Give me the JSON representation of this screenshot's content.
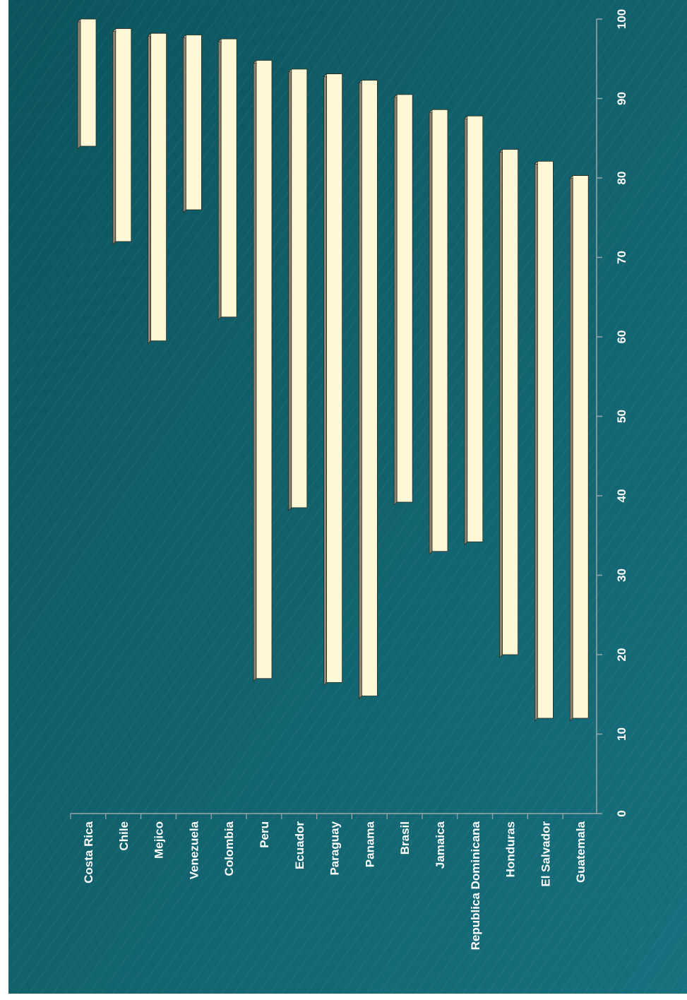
{
  "chart_data": {
    "type": "bar",
    "orientation": "floating-range",
    "categories": [
      "Costa Rica",
      "Chile",
      "Mejico",
      "Venezuela",
      "Colombia",
      "Peru",
      "Ecuador",
      "Paraguay",
      "Panama",
      "Brasil",
      "Jamaica",
      "Republica Dominicana",
      "Honduras",
      "El Salvador",
      "Guatemala"
    ],
    "series": [
      {
        "low": [
          84,
          72,
          59.5,
          76,
          62.5,
          17,
          38.5,
          16.5,
          14.8,
          39.2,
          33,
          34.2,
          20,
          12,
          12
        ],
        "high": [
          100,
          98.8,
          98.2,
          98,
          97.5,
          94.8,
          93.7,
          93.1,
          92.3,
          90.5,
          88.6,
          87.8,
          83.6,
          82.1,
          80.3
        ]
      }
    ],
    "value_axis": {
      "ticks": [
        "0",
        "10",
        "20",
        "30",
        "40",
        "50",
        "60",
        "70",
        "80",
        "90",
        "100"
      ],
      "range": [
        0,
        100
      ]
    },
    "grid": false,
    "legend": "none",
    "title": "",
    "xlabel": "",
    "ylabel": ""
  },
  "colors": {
    "background_dark": "#0c545d",
    "background_light": "#17707d",
    "bar_face": "#fff8d6",
    "bar_side": "#8a8473",
    "bar_top": "#c9c2a6",
    "axis": "#9aa9ab",
    "text": "#ffffff"
  }
}
